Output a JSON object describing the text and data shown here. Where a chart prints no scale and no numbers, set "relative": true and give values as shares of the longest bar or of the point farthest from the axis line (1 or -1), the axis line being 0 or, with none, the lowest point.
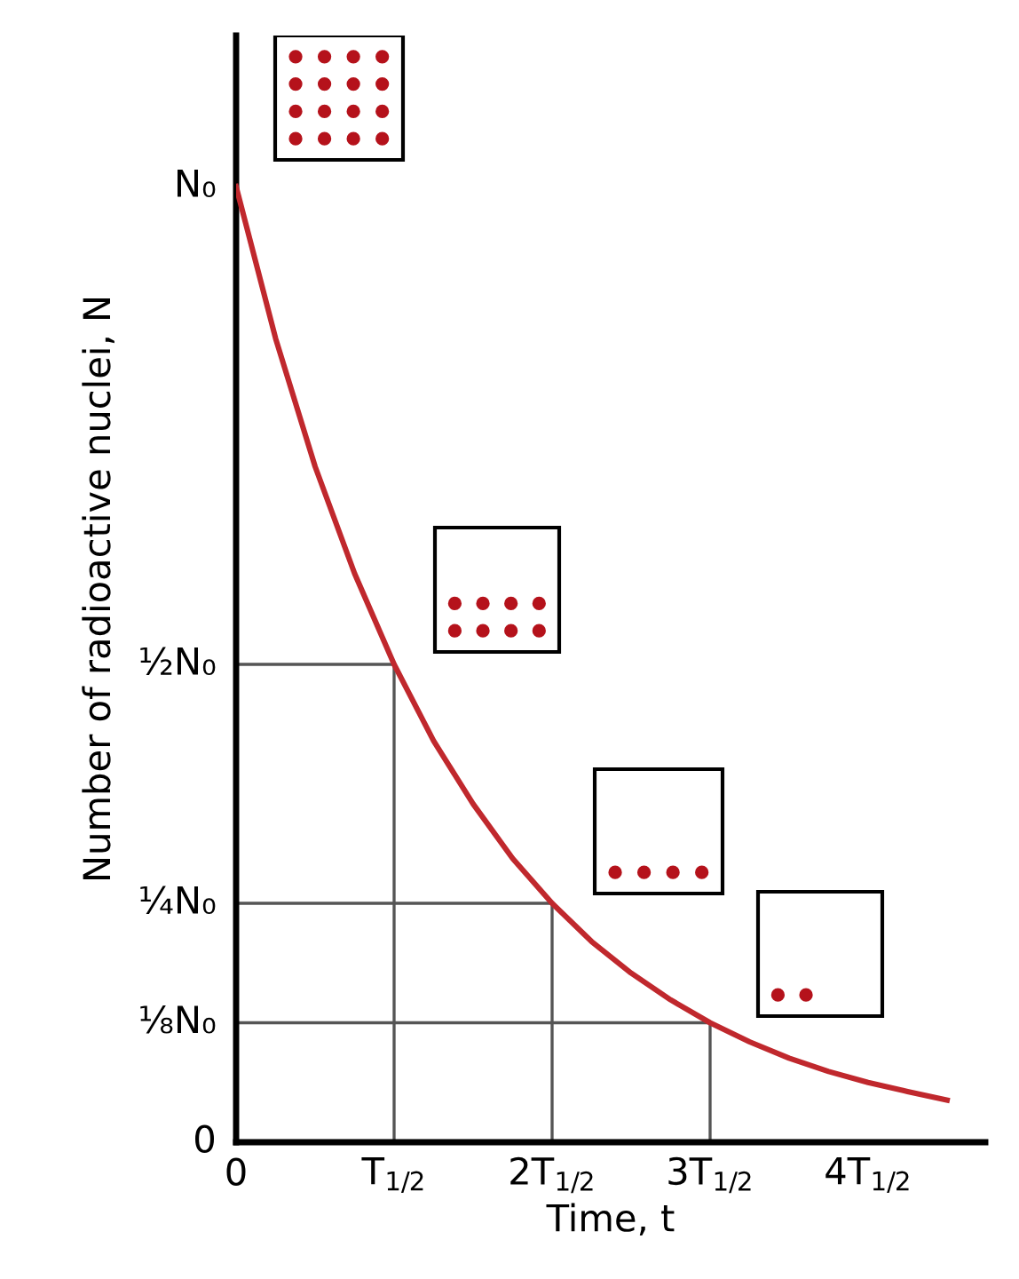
{
  "chart_data": {
    "type": "line",
    "xlabel": "Time, t",
    "ylabel": "Number of radioactive nuclei, N",
    "relative": true,
    "categories": [
      "0",
      null,
      null,
      null,
      "T$_{1/2}$",
      null,
      null,
      null,
      "2T$_{1/2}$",
      null,
      null,
      null,
      "3T$_{1/2}$",
      null,
      null,
      null,
      "4T$_{1/2}$",
      null,
      null
    ],
    "series": [
      {
        "color": "#c0282d",
        "values": [
          1,
          0.841,
          0.707,
          0.595,
          0.5,
          0.42,
          0.354,
          0.297,
          0.25,
          0.21,
          0.177,
          0.149,
          0.125,
          0.105,
          0.088,
          0.074,
          0.0625,
          0.053,
          0.044
        ]
      }
    ],
    "annotations": [
      "0",
      {
        "text": "N₀",
        "x": "0",
        "y": 1
      }
    ],
    "ref_lines": [
      {
        "axis": "y",
        "value": 0.5,
        "color": "#555555",
        "label": "½N₀"
      },
      {
        "axis": "y",
        "value": 0.25,
        "color": "#555555",
        "label": "¼N₀"
      },
      {
        "axis": "y",
        "value": 0.125,
        "color": "#555555",
        "label": "⅛N₀"
      }
    ],
    "grid": false,
    "marker": "none",
    "line_style": "solid"
  }
}
